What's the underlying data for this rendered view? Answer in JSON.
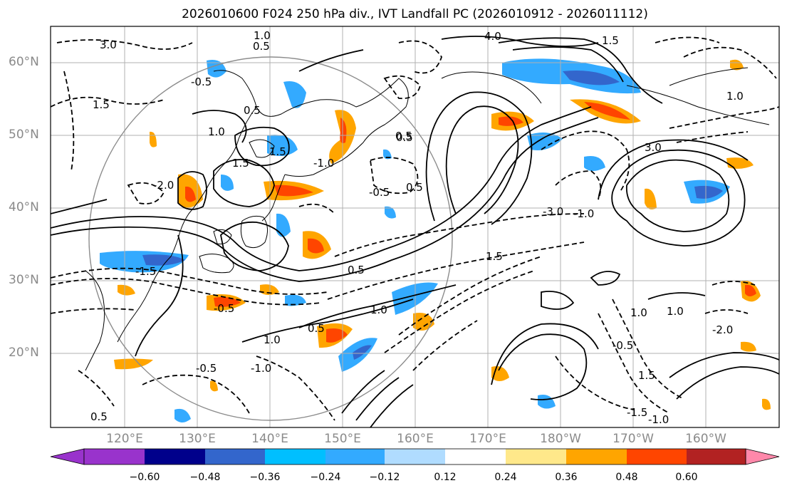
{
  "title": "2026010600 F024 250 hPa div., IVT Landfall PC (2026010912 - 2026011112)",
  "map": {
    "lat_labels": [
      "60°N",
      "50°N",
      "40°N",
      "30°N",
      "20°N"
    ],
    "lon_labels": [
      "120°E",
      "130°E",
      "140°E",
      "150°E",
      "160°E",
      "170°E",
      "180°W",
      "170°W",
      "160°W"
    ],
    "contour_labels": [
      "3.0",
      "-2.0",
      "1.5",
      "0.5",
      "1.0",
      "-0.5",
      "1.5",
      "0.5",
      "1.0",
      "-1.0",
      "1.5",
      "0.5",
      "-0.5",
      "1.0",
      "0.5",
      "-1.5",
      "-0.5",
      "1.0",
      "0.5",
      "-1.0",
      "-0.5",
      "0.5",
      "4.0",
      "1.5",
      "3.0",
      "-3.0",
      "-1.0",
      "1.5",
      "1.0",
      "-2.0",
      "1.0",
      "-0.5",
      "1.0",
      "1.5",
      "0.5",
      "0.5",
      "-1.5",
      "-1.0"
    ]
  },
  "colorbar": {
    "colors": [
      "#9933cc",
      "#00008b",
      "#3366cc",
      "#00bfff",
      "#33aaff",
      "#b0dcff",
      "#ffffff",
      "#ffe88a",
      "#ffa500",
      "#ff4500",
      "#b22222",
      "#ff88aa"
    ],
    "tick_labels": [
      "−0.60",
      "−0.48",
      "−0.36",
      "−0.24",
      "−0.12",
      "0.12",
      "0.24",
      "0.36",
      "0.48",
      "0.60"
    ]
  }
}
